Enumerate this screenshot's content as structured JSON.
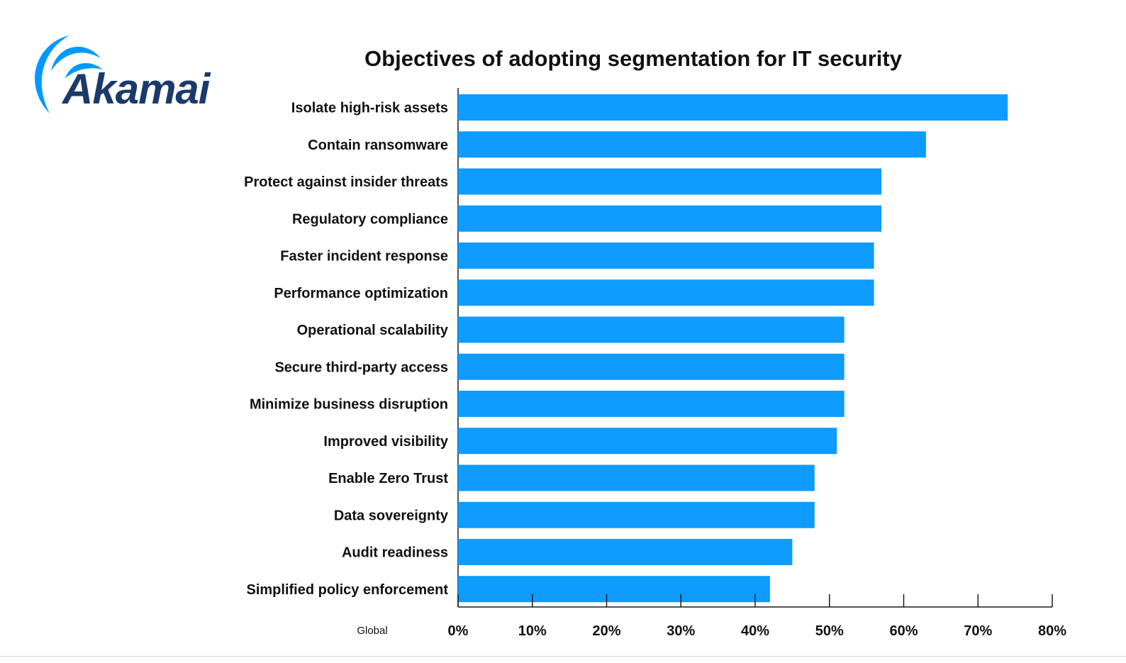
{
  "brand": {
    "logo_text": "Akamai",
    "logo_color": "#1b3a6b",
    "swoosh_color": "#0099ff"
  },
  "colors": {
    "bar": "#0f9bff",
    "axis": "#1a1a1a",
    "text": "#111111",
    "background": "#ffffff"
  },
  "chart_data": {
    "type": "bar",
    "orientation": "horizontal",
    "title": "Objectives of adopting segmentation for IT security",
    "series_label": "Global",
    "categories": [
      "Isolate high-risk assets",
      "Contain ransomware",
      "Protect against insider threats",
      "Regulatory compliance",
      "Faster incident response",
      "Performance optimization",
      "Operational scalability",
      "Secure third-party access",
      "Minimize business disruption",
      "Improved visibility",
      "Enable Zero Trust",
      "Data sovereignty",
      "Audit readiness",
      "Simplified policy enforcement"
    ],
    "values": [
      74,
      63,
      57,
      57,
      56,
      56,
      52,
      52,
      52,
      51,
      48,
      48,
      45,
      42
    ],
    "xlim": [
      0,
      80
    ],
    "x_ticks": [
      0,
      10,
      20,
      30,
      40,
      50,
      60,
      70,
      80
    ],
    "x_tick_labels": [
      "0%",
      "10%",
      "20%",
      "30%",
      "40%",
      "50%",
      "60%",
      "70%",
      "80%"
    ],
    "grid": false
  }
}
